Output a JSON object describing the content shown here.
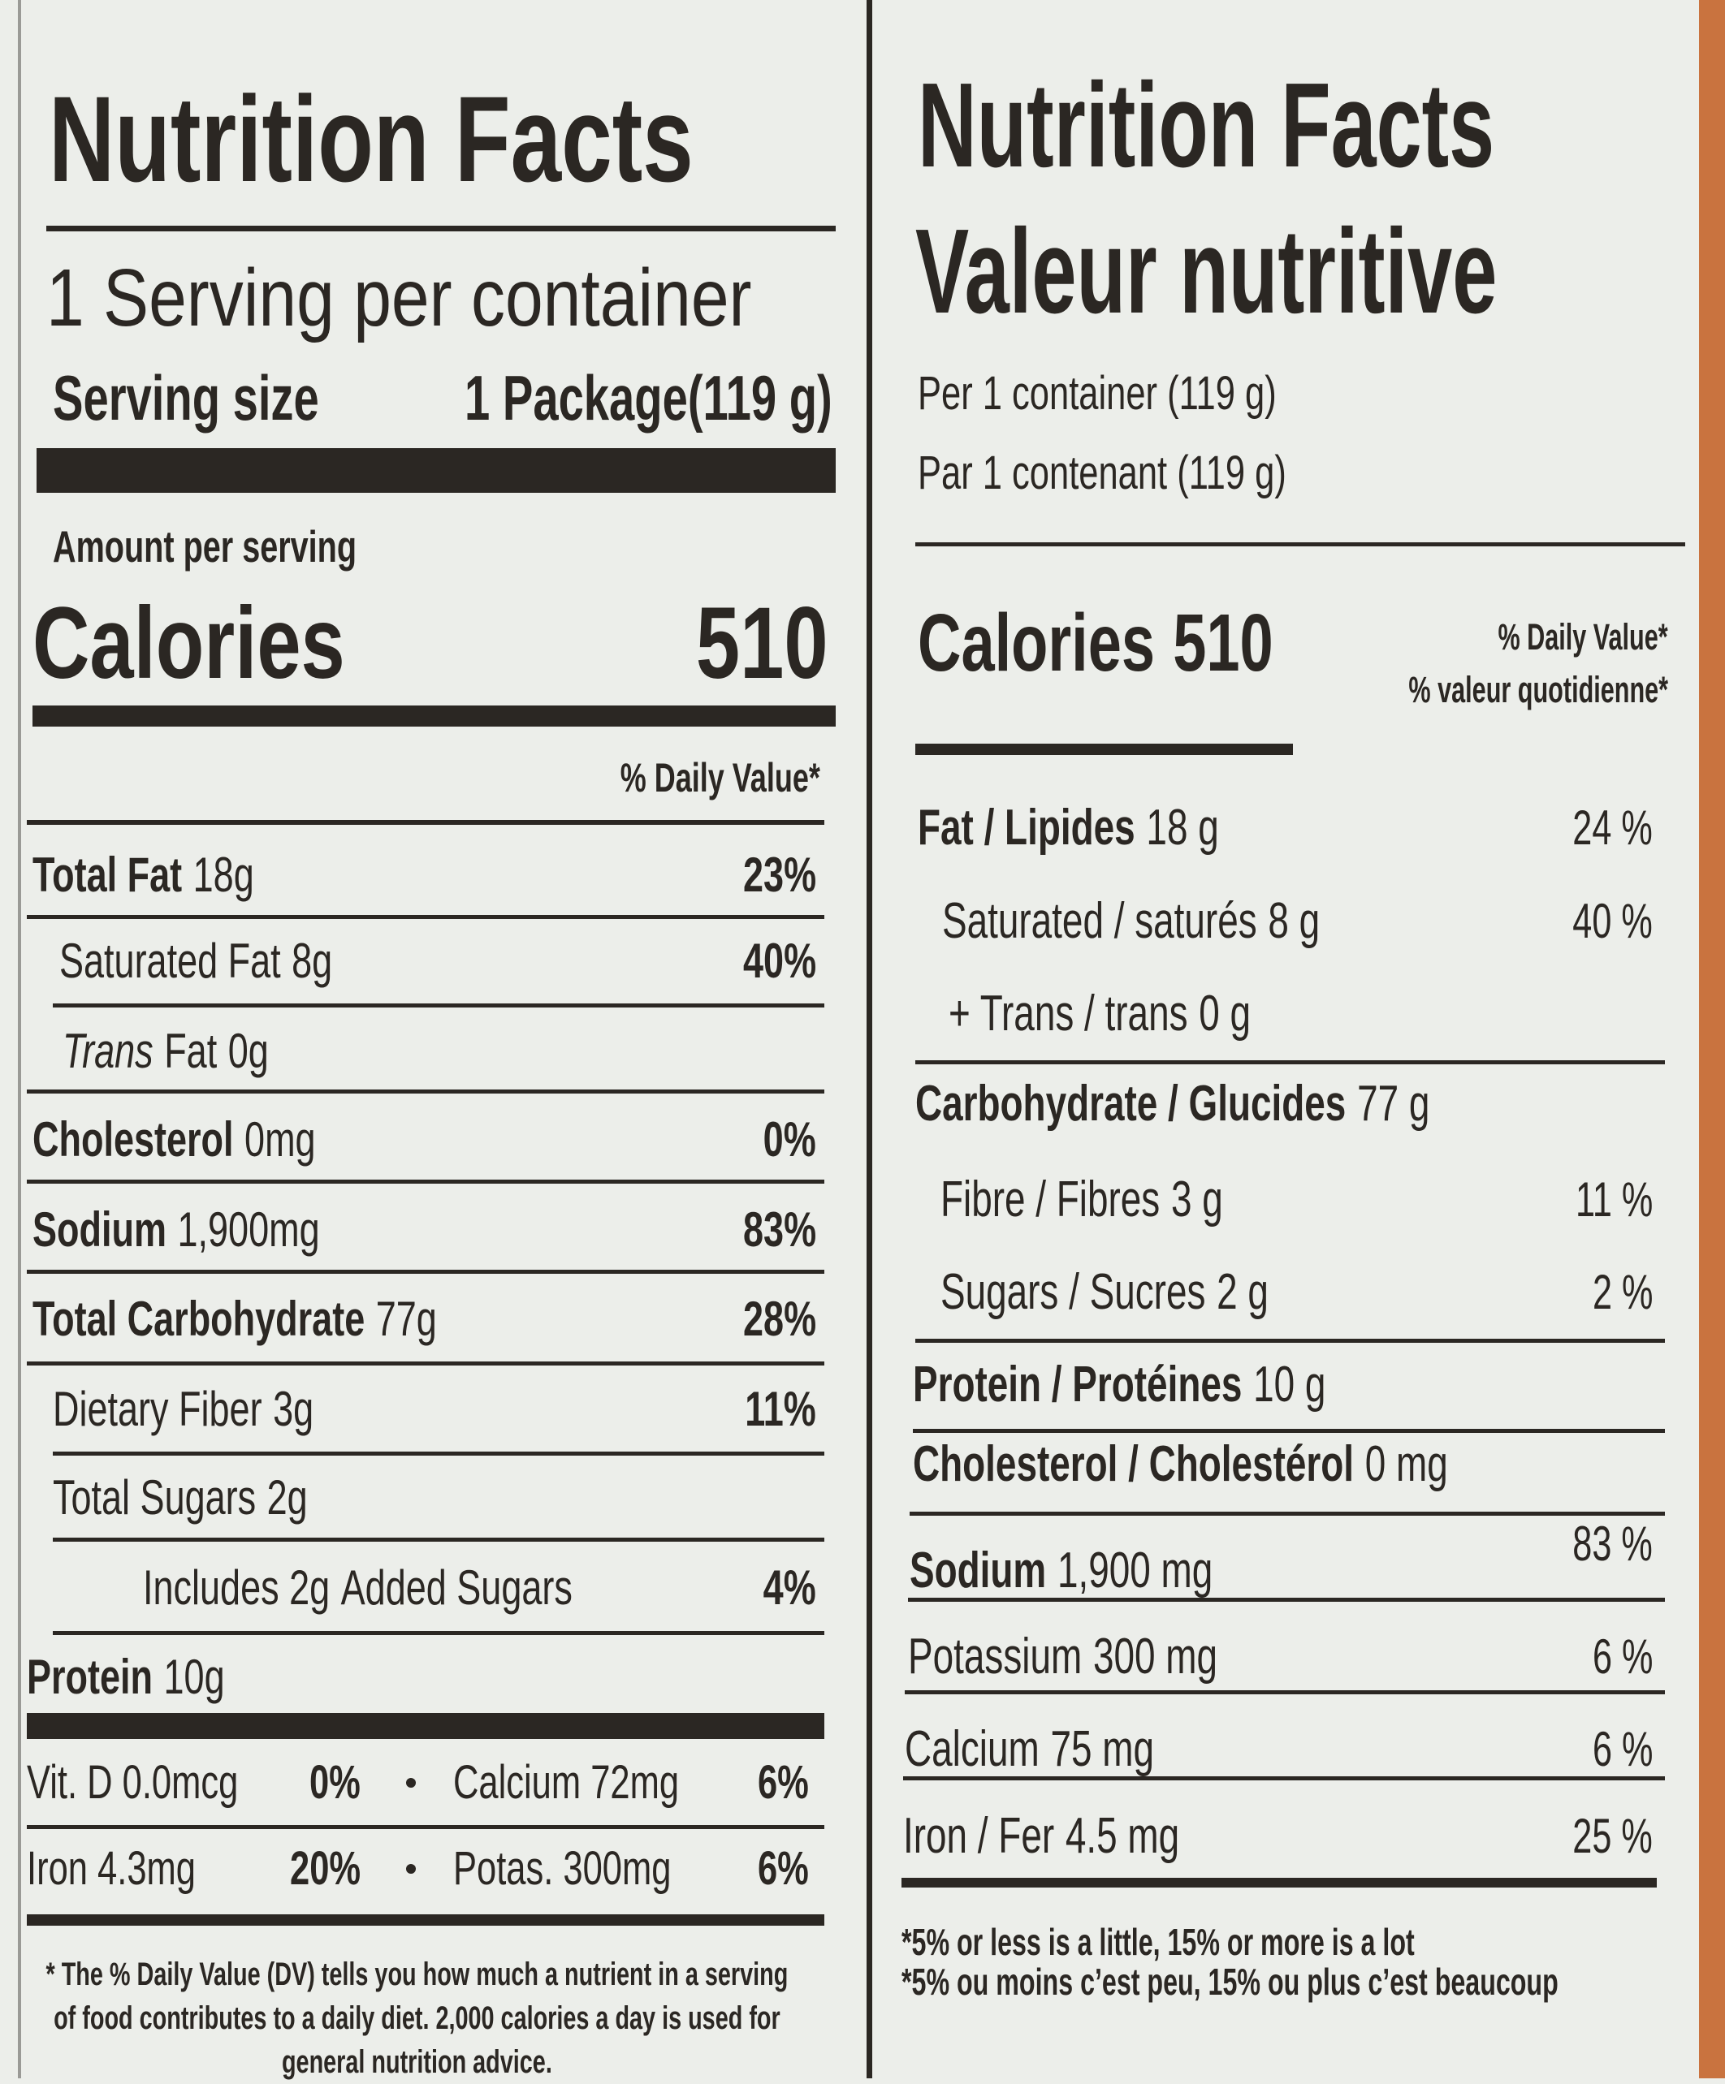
{
  "left": {
    "title": "Nutrition Facts",
    "servings": "1 Serving per container",
    "serving_size": {
      "label": "Serving size",
      "value": "1 Package(119 g)"
    },
    "amount_per_serving": "Amount per serving",
    "calories": {
      "label": "Calories",
      "value": "510"
    },
    "daily_value_header": "% Daily Value*",
    "rows": [
      {
        "name": "Total Fat",
        "amount": "18g",
        "dv": "23%"
      },
      {
        "name": "Saturated Fat",
        "amount": "8g",
        "dv": "40%"
      },
      {
        "prefix": "Trans",
        "name": "Fat",
        "amount": "0g"
      },
      {
        "name": "Cholesterol",
        "amount": "0mg",
        "dv": "0%"
      },
      {
        "name": "Sodium",
        "amount": "1,900mg",
        "dv": "83%"
      },
      {
        "name": "Total Carbohydrate",
        "amount": "77g",
        "dv": "28%"
      },
      {
        "name": "Dietary Fiber",
        "amount": "3g",
        "dv": "11%"
      },
      {
        "name": "Total Sugars",
        "amount": "2g"
      },
      {
        "text": "Includes 2g",
        "name": "Added Sugars",
        "dv": "4%"
      },
      {
        "name": "Protein",
        "amount": "10g"
      }
    ],
    "minerals": [
      [
        {
          "name": "Vit. D 0.0mcg",
          "dv": "0%"
        },
        {
          "name": "Calcium 72mg",
          "dv": "6%"
        }
      ],
      [
        {
          "name": "Iron 4.3mg",
          "dv": "20%"
        },
        {
          "name": "Potas. 300mg",
          "dv": "6%"
        }
      ]
    ],
    "footnote": "* The % Daily Value (DV) tells you how much a nutrient in a serving of food contributes to a daily diet. 2,000 calories a day is used for general nutrition advice."
  },
  "right": {
    "title": "Nutrition Facts",
    "title_fr": "Valeur nutritive",
    "per_container": "Per 1 container (119 g)",
    "per_container_fr": "Par 1 contenant (119 g)",
    "calories": {
      "label": "Calories",
      "value": "510"
    },
    "daily_value_header": "% Daily Value*",
    "daily_value_header_fr": "% valeur quotidienne*",
    "rows": [
      {
        "name": "Fat / Lipides",
        "amount": "18 g",
        "dv": "24 %"
      },
      {
        "name": "Saturated / saturés",
        "amount": "8 g",
        "dv": "40 %"
      },
      {
        "name": "+ Trans / trans",
        "amount": "0 g"
      },
      {
        "name": "Carbohydrate / Glucides",
        "amount": "77 g"
      },
      {
        "name": "Fibre / Fibres",
        "amount": "3 g",
        "dv": "11 %"
      },
      {
        "name": "Sugars / Sucres",
        "amount": "2 g",
        "dv": "2 %"
      },
      {
        "name": "Protein / Protéines",
        "amount": "10 g"
      },
      {
        "name": "Cholesterol / Cholestérol",
        "amount": "0 mg"
      },
      {
        "name": "Sodium",
        "amount": "1,900 mg",
        "dv": "83 %"
      },
      {
        "name": "Potassium",
        "amount": "300 mg",
        "dv": "6 %"
      },
      {
        "name": "Calcium",
        "amount": "75 mg",
        "dv": "6 %"
      },
      {
        "name": "Iron / Fer",
        "amount": "4.5 mg",
        "dv": "25 %"
      }
    ],
    "footnote": "*5% or less is a little, 15% or more is a lot",
    "footnote_fr": "*5% ou moins c’est peu, 15% ou plus c’est beaucoup"
  }
}
